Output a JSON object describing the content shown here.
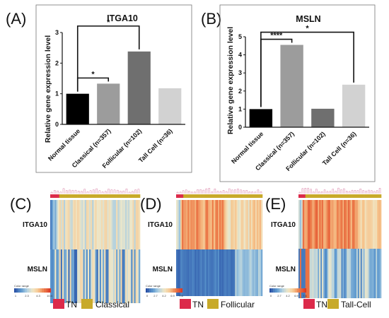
{
  "panels": [
    {
      "label": "(A)"
    },
    {
      "label": "(B)"
    },
    {
      "label": "(C)"
    },
    {
      "label": "(D)"
    },
    {
      "label": "(E)"
    }
  ],
  "chart_data": [
    {
      "type": "bar",
      "title": "ITGA10",
      "ylabel": "Relative gene expression level",
      "categories": [
        "Normal tissue",
        "Classical (n=357)",
        "Follicular (n=102)",
        "Tall Cell (n=36)"
      ],
      "values": [
        1.0,
        1.33,
        2.38,
        1.18
      ],
      "colors": [
        "#000000",
        "#9c9c9c",
        "#6f6f6f",
        "#d2d2d2"
      ],
      "ylim": [
        0,
        3
      ],
      "yticks": [
        "0",
        "1",
        "2",
        "3"
      ],
      "significance": [
        {
          "from": 0,
          "to": 1,
          "label": "*"
        },
        {
          "from": 0,
          "to": 2,
          "label": "*"
        }
      ]
    },
    {
      "type": "bar",
      "title": "MSLN",
      "ylabel": "Relative gene expression level",
      "categories": [
        "Normal tissue",
        "Classical (n=357)",
        "Follicular (n=102)",
        "Tall Cell (n=36)"
      ],
      "values": [
        1.0,
        4.55,
        1.02,
        2.35
      ],
      "colors": [
        "#000000",
        "#9c9c9c",
        "#6f6f6f",
        "#d2d2d2"
      ],
      "ylim": [
        0,
        5
      ],
      "yticks": [
        "0",
        "1",
        "2",
        "3",
        "4",
        "5"
      ],
      "significance": [
        {
          "from": 0,
          "to": 1,
          "label": "****"
        },
        {
          "from": 0,
          "to": 3,
          "label": "*"
        }
      ]
    },
    {
      "type": "heatmap",
      "rows": [
        "ITGA10",
        "MSLN"
      ],
      "legend": {
        "tn_label": "TN",
        "group_label": "Classical",
        "tn_color": "#dc2a4a",
        "group_color": "#c8aa2a"
      },
      "color_key_title": "Color range",
      "color_key_ticks": [
        "1",
        "2.3",
        "4.3",
        "10.4"
      ]
    },
    {
      "type": "heatmap",
      "rows": [
        "ITGA10",
        "MSLN"
      ],
      "legend": {
        "tn_label": "TN",
        "group_label": "Follicular",
        "tn_color": "#dc2a4a",
        "group_color": "#c8aa2a"
      },
      "color_key_title": "Color range",
      "color_key_ticks": [
        "0",
        "2.7",
        "4.2",
        "6.9",
        "7.6"
      ]
    },
    {
      "type": "heatmap",
      "rows": [
        "ITGA10",
        "MSLN"
      ],
      "legend": {
        "tn_label": "TN",
        "group_label": "Tall-Cell",
        "tn_color": "#dc2a4a",
        "group_color": "#c8aa2a"
      },
      "color_key_title": "Color range",
      "color_key_ticks": [
        "0",
        "2.7",
        "4.2",
        "6.9",
        "7.6"
      ]
    }
  ]
}
